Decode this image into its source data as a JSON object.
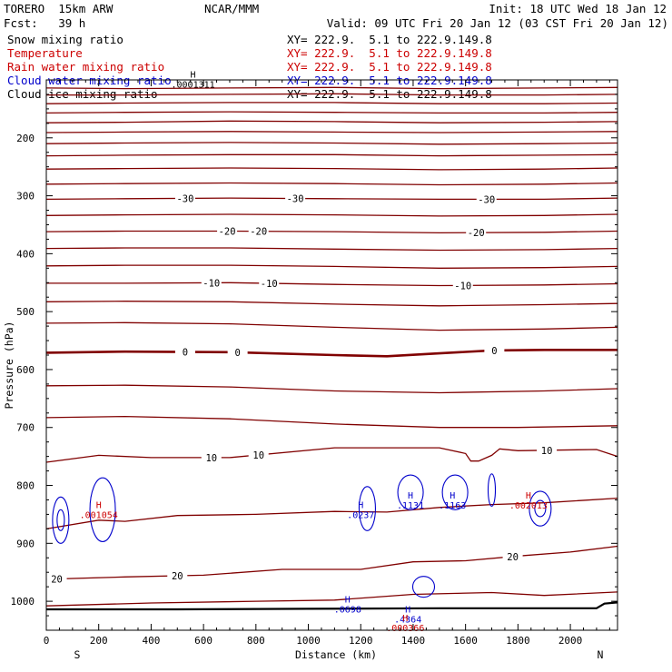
{
  "header": {
    "model": "TORERO  15km ARW",
    "center": "NCAR/MMM",
    "init": "Init: 18 UTC Wed 18 Jan 12",
    "fcst": "Fcst:   39 h",
    "valid": "Valid: 09 UTC Fri 20 Jan 12 (03 CST Fri 20 Jan 12)",
    "fields": [
      {
        "name": "Snow mixing ratio",
        "xy": "XY= 222.9.  5.1 to 222.9.149.8",
        "color": "#000000"
      },
      {
        "name": "Temperature",
        "xy": "XY= 222.9.  5.1 to 222.9.149.8",
        "color": "#cc0000"
      },
      {
        "name": "Rain water mixing ratio",
        "xy": "XY= 222.9.  5.1 to 222.9.149.8",
        "color": "#cc0000"
      },
      {
        "name": "Cloud water mixing ratio",
        "xy": "XY= 222.9.  5.1 to 222.9.149.8",
        "color": "#0000cc"
      },
      {
        "name": "Cloud ice mixing ratio",
        "xy": "XY= 222.9.  5.1 to 222.9.149.8",
        "color": "#000000"
      }
    ]
  },
  "chart_data": {
    "type": "line",
    "title": "",
    "xlabel": "Distance (km)",
    "ylabel": "Pressure (hPa)",
    "xlim": [
      0,
      2180
    ],
    "ylim": [
      1050,
      100
    ],
    "x_ticks": [
      0,
      200,
      400,
      600,
      800,
      1000,
      1200,
      1400,
      1600,
      1800,
      2000
    ],
    "y_ticks": [
      200,
      300,
      400,
      500,
      600,
      700,
      800,
      900,
      1000
    ],
    "end_labels": {
      "left": "S",
      "right": "N"
    },
    "colors": {
      "temperature": "#800000",
      "cloud_water": "#0000cc",
      "rain": "#cc0000",
      "terrain": "#000000"
    },
    "isotherm_step_c": 5,
    "isotherms": [
      {
        "x": [
          0,
          300,
          700,
          1100,
          1500,
          1900,
          2180
        ],
        "p": [
          114,
          115,
          114,
          113,
          115,
          114,
          113
        ]
      },
      {
        "x": [
          0,
          300,
          700,
          1100,
          1500,
          1900,
          2180
        ],
        "p": [
          126,
          126,
          125,
          124,
          126,
          126,
          125
        ]
      },
      {
        "x": [
          0,
          300,
          700,
          1100,
          1500,
          1900,
          2180
        ],
        "p": [
          141,
          140,
          139,
          139,
          141,
          141,
          140
        ]
      },
      {
        "x": [
          0,
          300,
          700,
          1100,
          1500,
          1900,
          2180
        ],
        "p": [
          157,
          156,
          155,
          156,
          157,
          157,
          156
        ]
      },
      {
        "x": [
          0,
          300,
          700,
          1100,
          1500,
          1900,
          2180
        ],
        "p": [
          174,
          173,
          171,
          172,
          174,
          173,
          172
        ]
      },
      {
        "x": [
          0,
          300,
          700,
          1100,
          1500,
          1900,
          2180
        ],
        "p": [
          191,
          190,
          189,
          190,
          191,
          190,
          189
        ]
      },
      {
        "x": [
          0,
          300,
          700,
          1100,
          1500,
          1900,
          2180
        ],
        "p": [
          210,
          209,
          208,
          209,
          211,
          210,
          209
        ]
      },
      {
        "x": [
          0,
          300,
          700,
          1100,
          1500,
          1900,
          2180
        ],
        "p": [
          231,
          230,
          229,
          229,
          231,
          230,
          229
        ]
      },
      {
        "x": [
          0,
          300,
          700,
          1100,
          1500,
          1900,
          2180
        ],
        "p": [
          254,
          253,
          252,
          253,
          255,
          254,
          252
        ]
      },
      {
        "x": [
          0,
          300,
          700,
          1100,
          1500,
          1900,
          2180
        ],
        "p": [
          280,
          279,
          278,
          279,
          281,
          280,
          278
        ]
      },
      {
        "x": [
          0,
          300,
          700,
          1100,
          1500,
          1900,
          2180
        ],
        "p": [
          306,
          305,
          304,
          305,
          306,
          306,
          304
        ],
        "label": "-30",
        "lx": [
          530,
          950,
          1680
        ]
      },
      {
        "x": [
          0,
          300,
          700,
          1100,
          1500,
          1900,
          2180
        ],
        "p": [
          334,
          333,
          332,
          333,
          335,
          334,
          332
        ]
      },
      {
        "x": [
          0,
          300,
          700,
          1100,
          1500,
          1900,
          2180
        ],
        "p": [
          362,
          361,
          361,
          362,
          364,
          363,
          361
        ],
        "label": "-20",
        "lx": [
          690,
          810,
          1640
        ]
      },
      {
        "x": [
          0,
          300,
          700,
          1100,
          1500,
          1900,
          2180
        ],
        "p": [
          391,
          390,
          390,
          392,
          394,
          393,
          391
        ]
      },
      {
        "x": [
          0,
          300,
          700,
          1100,
          1500,
          1900,
          2180
        ],
        "p": [
          421,
          420,
          420,
          422,
          425,
          424,
          422
        ]
      },
      {
        "x": [
          0,
          300,
          700,
          1100,
          1500,
          1900,
          2180
        ],
        "p": [
          451,
          451,
          450,
          453,
          455,
          454,
          452
        ],
        "label": "-10",
        "lx": [
          630,
          850,
          1590
        ]
      },
      {
        "x": [
          0,
          300,
          700,
          1100,
          1500,
          1900,
          2180
        ],
        "p": [
          483,
          482,
          483,
          487,
          490,
          488,
          486
        ]
      },
      {
        "x": [
          0,
          300,
          700,
          1100,
          1500,
          1900,
          2180
        ],
        "p": [
          520,
          519,
          521,
          527,
          532,
          530,
          527
        ]
      },
      {
        "x": [
          0,
          300,
          700,
          1100,
          1300,
          1500,
          1700,
          1900,
          2180
        ],
        "p": [
          571,
          569,
          570,
          575,
          577,
          572,
          567,
          566,
          566
        ],
        "label": "0",
        "lx": [
          530,
          730,
          1710
        ],
        "thick": true
      },
      {
        "x": [
          0,
          300,
          700,
          1100,
          1500,
          1900,
          2180
        ],
        "p": [
          628,
          627,
          630,
          637,
          640,
          637,
          633
        ]
      },
      {
        "x": [
          0,
          300,
          700,
          1100,
          1500,
          1800,
          2180
        ],
        "p": [
          683,
          681,
          685,
          694,
          700,
          700,
          697
        ]
      },
      {
        "x": [
          0,
          200,
          400,
          700,
          1100,
          1500,
          1600,
          1620,
          1650,
          1700,
          1730,
          1800,
          2100,
          2180
        ],
        "p": [
          760,
          748,
          752,
          752,
          735,
          735,
          745,
          758,
          758,
          748,
          737,
          740,
          738,
          750
        ],
        "label": "10",
        "lx": [
          630,
          810,
          1910
        ]
      },
      {
        "x": [
          0,
          200,
          300,
          500,
          800,
          1100,
          1300,
          1500,
          1700,
          1900,
          2180
        ],
        "p": [
          875,
          860,
          862,
          852,
          850,
          845,
          846,
          838,
          833,
          830,
          822
        ]
      },
      {
        "x": [
          0,
          300,
          600,
          900,
          1200,
          1400,
          1600,
          1800,
          2000,
          2180
        ],
        "p": [
          962,
          958,
          955,
          945,
          945,
          932,
          930,
          922,
          915,
          905
        ],
        "label": "20",
        "lx": [
          40,
          500,
          1780
        ]
      },
      {
        "x": [
          0,
          400,
          800,
          1100,
          1400,
          1700,
          1900,
          2180
        ],
        "p": [
          1008,
          1003,
          1000,
          998,
          988,
          985,
          990,
          984
        ]
      }
    ],
    "terrain": {
      "x": [
        0,
        500,
        1000,
        1500,
        2000,
        2100,
        2130,
        2180
      ],
      "p": [
        1014,
        1014,
        1013,
        1012,
        1012,
        1012,
        1004,
        1002
      ]
    },
    "maxima": [
      {
        "species": "snow",
        "x": 560,
        "p": 112,
        "value": ".0001311"
      },
      {
        "species": "rain",
        "x": 200,
        "p": 855,
        "value": ".001054"
      },
      {
        "species": "cloud_water",
        "x": 1200,
        "p": 855,
        "value": ".0237"
      },
      {
        "species": "cloud_water",
        "x": 1390,
        "p": 838,
        "value": ".1131"
      },
      {
        "species": "cloud_water",
        "x": 1550,
        "p": 838,
        "value": ".1163"
      },
      {
        "species": "rain",
        "x": 1840,
        "p": 838,
        "value": ".002013"
      },
      {
        "species": "cloud_water",
        "x": 1150,
        "p": 1018,
        "value": ".0698"
      },
      {
        "species": "cloud_water",
        "x": 1380,
        "p": 1035,
        "value": ".4364"
      },
      {
        "species": "rain",
        "x": 1370,
        "p": 1050,
        "value": ".000366"
      }
    ]
  }
}
